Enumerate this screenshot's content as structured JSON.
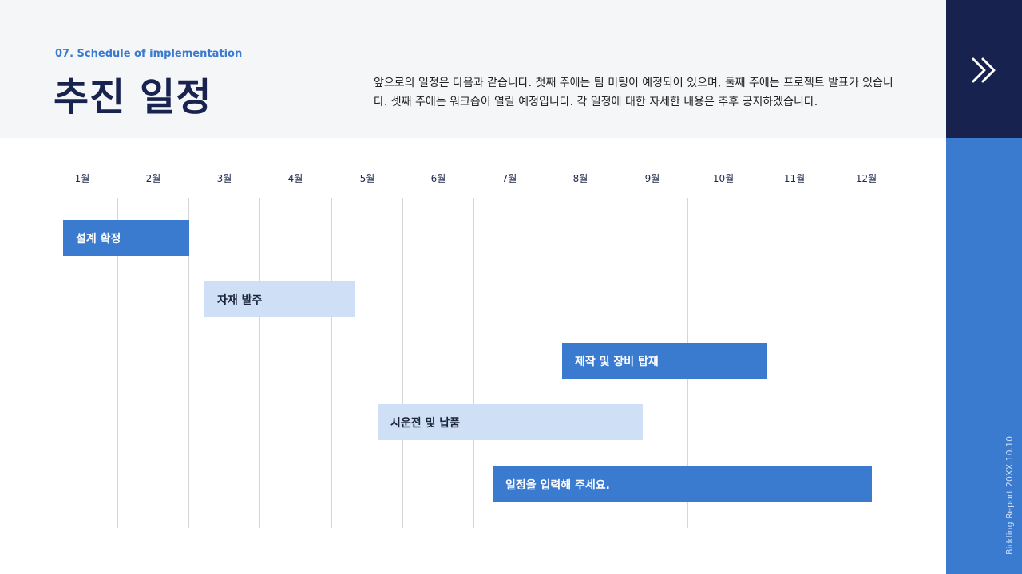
{
  "header": {
    "subtitle": "07. Schedule of implementation",
    "title": "추진 일정",
    "description": "앞으로의 일정은 다음과 같습니다. 첫째 주에는 팀 미팅이 예정되어 있으며, 둘째 주에는 프로젝트 발표가 있습니다. 셋째 주에는 워크숍이 열릴 예정입니다. 각 일정에 대한 자세한 내용은 추후 공지하겠습니다."
  },
  "sidebar": {
    "icon": "double-chevron-right-icon",
    "footer": "Bidding Report 20XX.10.10",
    "top_color": "#17224f",
    "bottom_color": "#3a7bd0"
  },
  "timeline": {
    "months": [
      "1월",
      "2월",
      "3월",
      "4월",
      "5월",
      "6월",
      "7월",
      "8월",
      "9월",
      "10월",
      "11월",
      "12월"
    ],
    "tasks": [
      {
        "label": "설계 확정",
        "style": "dark"
      },
      {
        "label": "자재 발주",
        "style": "light"
      },
      {
        "label": "제작 및 장비 탑재",
        "style": "dark"
      },
      {
        "label": "시운전 및 납품",
        "style": "light"
      },
      {
        "label": "일정을 입력해 주세요.",
        "style": "dark"
      }
    ]
  },
  "colors": {
    "accent": "#3a7bd0",
    "light_bar": "#cfe0f6",
    "navy": "#18234f"
  }
}
